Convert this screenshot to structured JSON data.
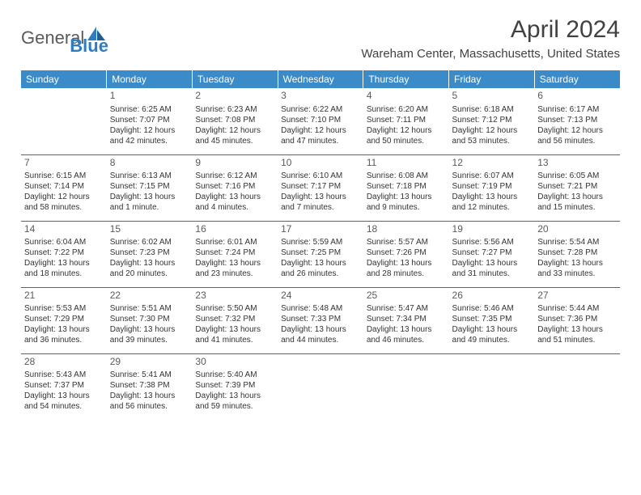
{
  "logo": {
    "general": "General",
    "blue": "Blue"
  },
  "title": "April 2024",
  "subtitle": "Wareham Center, Massachusetts, United States",
  "header_bg": "#3b8bc9",
  "header_fg": "#ffffff",
  "divider_color": "#2f6fa3",
  "text_color": "#333333",
  "background_color": "#ffffff",
  "days_of_week": [
    "Sunday",
    "Monday",
    "Tuesday",
    "Wednesday",
    "Thursday",
    "Friday",
    "Saturday"
  ],
  "weeks": [
    [
      null,
      {
        "n": "1",
        "sr": "Sunrise: 6:25 AM",
        "ss": "Sunset: 7:07 PM",
        "dl": "Daylight: 12 hours and 42 minutes."
      },
      {
        "n": "2",
        "sr": "Sunrise: 6:23 AM",
        "ss": "Sunset: 7:08 PM",
        "dl": "Daylight: 12 hours and 45 minutes."
      },
      {
        "n": "3",
        "sr": "Sunrise: 6:22 AM",
        "ss": "Sunset: 7:10 PM",
        "dl": "Daylight: 12 hours and 47 minutes."
      },
      {
        "n": "4",
        "sr": "Sunrise: 6:20 AM",
        "ss": "Sunset: 7:11 PM",
        "dl": "Daylight: 12 hours and 50 minutes."
      },
      {
        "n": "5",
        "sr": "Sunrise: 6:18 AM",
        "ss": "Sunset: 7:12 PM",
        "dl": "Daylight: 12 hours and 53 minutes."
      },
      {
        "n": "6",
        "sr": "Sunrise: 6:17 AM",
        "ss": "Sunset: 7:13 PM",
        "dl": "Daylight: 12 hours and 56 minutes."
      }
    ],
    [
      {
        "n": "7",
        "sr": "Sunrise: 6:15 AM",
        "ss": "Sunset: 7:14 PM",
        "dl": "Daylight: 12 hours and 58 minutes."
      },
      {
        "n": "8",
        "sr": "Sunrise: 6:13 AM",
        "ss": "Sunset: 7:15 PM",
        "dl": "Daylight: 13 hours and 1 minute."
      },
      {
        "n": "9",
        "sr": "Sunrise: 6:12 AM",
        "ss": "Sunset: 7:16 PM",
        "dl": "Daylight: 13 hours and 4 minutes."
      },
      {
        "n": "10",
        "sr": "Sunrise: 6:10 AM",
        "ss": "Sunset: 7:17 PM",
        "dl": "Daylight: 13 hours and 7 minutes."
      },
      {
        "n": "11",
        "sr": "Sunrise: 6:08 AM",
        "ss": "Sunset: 7:18 PM",
        "dl": "Daylight: 13 hours and 9 minutes."
      },
      {
        "n": "12",
        "sr": "Sunrise: 6:07 AM",
        "ss": "Sunset: 7:19 PM",
        "dl": "Daylight: 13 hours and 12 minutes."
      },
      {
        "n": "13",
        "sr": "Sunrise: 6:05 AM",
        "ss": "Sunset: 7:21 PM",
        "dl": "Daylight: 13 hours and 15 minutes."
      }
    ],
    [
      {
        "n": "14",
        "sr": "Sunrise: 6:04 AM",
        "ss": "Sunset: 7:22 PM",
        "dl": "Daylight: 13 hours and 18 minutes."
      },
      {
        "n": "15",
        "sr": "Sunrise: 6:02 AM",
        "ss": "Sunset: 7:23 PM",
        "dl": "Daylight: 13 hours and 20 minutes."
      },
      {
        "n": "16",
        "sr": "Sunrise: 6:01 AM",
        "ss": "Sunset: 7:24 PM",
        "dl": "Daylight: 13 hours and 23 minutes."
      },
      {
        "n": "17",
        "sr": "Sunrise: 5:59 AM",
        "ss": "Sunset: 7:25 PM",
        "dl": "Daylight: 13 hours and 26 minutes."
      },
      {
        "n": "18",
        "sr": "Sunrise: 5:57 AM",
        "ss": "Sunset: 7:26 PM",
        "dl": "Daylight: 13 hours and 28 minutes."
      },
      {
        "n": "19",
        "sr": "Sunrise: 5:56 AM",
        "ss": "Sunset: 7:27 PM",
        "dl": "Daylight: 13 hours and 31 minutes."
      },
      {
        "n": "20",
        "sr": "Sunrise: 5:54 AM",
        "ss": "Sunset: 7:28 PM",
        "dl": "Daylight: 13 hours and 33 minutes."
      }
    ],
    [
      {
        "n": "21",
        "sr": "Sunrise: 5:53 AM",
        "ss": "Sunset: 7:29 PM",
        "dl": "Daylight: 13 hours and 36 minutes."
      },
      {
        "n": "22",
        "sr": "Sunrise: 5:51 AM",
        "ss": "Sunset: 7:30 PM",
        "dl": "Daylight: 13 hours and 39 minutes."
      },
      {
        "n": "23",
        "sr": "Sunrise: 5:50 AM",
        "ss": "Sunset: 7:32 PM",
        "dl": "Daylight: 13 hours and 41 minutes."
      },
      {
        "n": "24",
        "sr": "Sunrise: 5:48 AM",
        "ss": "Sunset: 7:33 PM",
        "dl": "Daylight: 13 hours and 44 minutes."
      },
      {
        "n": "25",
        "sr": "Sunrise: 5:47 AM",
        "ss": "Sunset: 7:34 PM",
        "dl": "Daylight: 13 hours and 46 minutes."
      },
      {
        "n": "26",
        "sr": "Sunrise: 5:46 AM",
        "ss": "Sunset: 7:35 PM",
        "dl": "Daylight: 13 hours and 49 minutes."
      },
      {
        "n": "27",
        "sr": "Sunrise: 5:44 AM",
        "ss": "Sunset: 7:36 PM",
        "dl": "Daylight: 13 hours and 51 minutes."
      }
    ],
    [
      {
        "n": "28",
        "sr": "Sunrise: 5:43 AM",
        "ss": "Sunset: 7:37 PM",
        "dl": "Daylight: 13 hours and 54 minutes."
      },
      {
        "n": "29",
        "sr": "Sunrise: 5:41 AM",
        "ss": "Sunset: 7:38 PM",
        "dl": "Daylight: 13 hours and 56 minutes."
      },
      {
        "n": "30",
        "sr": "Sunrise: 5:40 AM",
        "ss": "Sunset: 7:39 PM",
        "dl": "Daylight: 13 hours and 59 minutes."
      },
      null,
      null,
      null,
      null
    ]
  ]
}
